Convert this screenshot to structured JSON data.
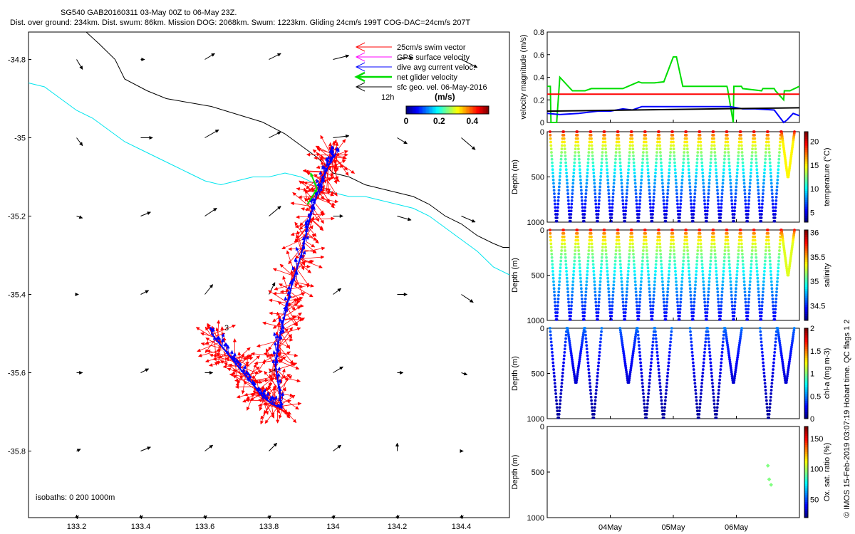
{
  "header": {
    "title_line1": "SG540 GAB20160311 03-May 00Z to 06-May 23Z.",
    "title_line2": "Dist. over ground: 234km. Dist. swum: 86km. Mission DOG: 2068km. Swum: 1223km. Gliding 24cm/s 199T COG-DAC=24cm/s 207T"
  },
  "footer": {
    "side_note": "© IMOS 15-Feb-2019 03:07:19 Hobart time. QC flags 1  2"
  },
  "colors": {
    "swim": "#ff0000",
    "gps": "#ff00ff",
    "dac": "#0000ff",
    "net": "#00dd00",
    "sfc": "#000000",
    "isobath_200": "#000000",
    "isobath_1000": "#00e5ee"
  },
  "chart_data": [
    {
      "id": "map",
      "type": "scatter",
      "xlabel": "",
      "ylabel": "",
      "xlim": [
        133.05,
        134.55
      ],
      "ylim": [
        -35.97,
        -34.73
      ],
      "xticks": [
        133.2,
        133.4,
        133.6,
        133.8,
        134,
        134.2,
        134.4
      ],
      "yticks": [
        -34.8,
        -35,
        -35.2,
        -35.4,
        -35.6,
        -35.8
      ],
      "legend": {
        "placement": "top-right",
        "entries": [
          "25cm/s swim vector",
          "GPS surface velocity",
          "dive avg current veloc.",
          "net glider velocity",
          "sfc geo. vel. 06-May-2016"
        ],
        "extra_label": "12h"
      },
      "colorbar": {
        "label": "(m/s)",
        "ticks": [
          "0",
          "0.2",
          "0.4"
        ],
        "range": [
          0,
          0.5
        ],
        "colormap": "jet"
      },
      "isobaths_note": "isobaths: 0   200  1000m",
      "track_label": "3",
      "isobath_200_lon": [
        133.23,
        133.27,
        133.32,
        133.35,
        133.42,
        133.48,
        133.55,
        133.62,
        133.7,
        133.78,
        133.85,
        133.9,
        133.95,
        134.0,
        134.05,
        134.1,
        134.15,
        134.2,
        134.25,
        134.3,
        134.35,
        134.4,
        134.45,
        134.5,
        134.53,
        134.55
      ],
      "isobath_200_lat": [
        -34.73,
        -34.76,
        -34.8,
        -34.85,
        -34.88,
        -34.9,
        -34.91,
        -34.92,
        -34.94,
        -34.96,
        -34.99,
        -35.02,
        -35.05,
        -35.09,
        -35.1,
        -35.12,
        -35.13,
        -35.14,
        -35.15,
        -35.17,
        -35.2,
        -35.22,
        -35.25,
        -35.27,
        -35.28,
        -35.28
      ],
      "isobath_1000_lon": [
        133.05,
        133.1,
        133.15,
        133.2,
        133.25,
        133.3,
        133.35,
        133.4,
        133.45,
        133.5,
        133.55,
        133.6,
        133.65,
        133.7,
        133.75,
        133.8,
        133.85,
        133.9,
        133.95,
        134.0,
        134.05,
        134.1,
        134.15,
        134.2,
        134.25,
        134.3,
        134.35,
        134.4,
        134.45,
        134.5,
        134.55
      ],
      "isobath_1000_lat": [
        -34.86,
        -34.87,
        -34.9,
        -34.93,
        -34.95,
        -34.98,
        -35.01,
        -35.03,
        -35.05,
        -35.07,
        -35.09,
        -35.11,
        -35.12,
        -35.11,
        -35.1,
        -35.1,
        -35.09,
        -35.1,
        -35.12,
        -35.14,
        -35.15,
        -35.15,
        -35.16,
        -35.17,
        -35.18,
        -35.2,
        -35.23,
        -35.26,
        -35.29,
        -35.33,
        -35.35
      ],
      "track_lon": [
        133.62,
        133.66,
        133.7,
        133.74,
        133.78,
        133.81,
        133.84,
        133.82,
        133.83,
        133.85,
        133.87,
        133.9,
        133.92,
        133.94,
        133.96,
        133.98,
        134.0,
        134.01
      ],
      "track_lat": [
        -35.5,
        -35.54,
        -35.58,
        -35.62,
        -35.66,
        -35.68,
        -35.69,
        -35.58,
        -35.52,
        -35.45,
        -35.38,
        -35.3,
        -35.23,
        -35.17,
        -35.12,
        -35.08,
        -35.05,
        -35.04
      ],
      "geo_vel_lon": [
        133.2,
        133.4,
        133.6,
        133.8,
        134.0,
        134.2,
        134.4
      ],
      "geo_vel_lat": [
        -34.8,
        -35.0,
        -35.2,
        -35.4,
        -35.6,
        -35.8,
        -35.97
      ],
      "geo_vel_u": [
        [
          0.03,
          0.02,
          0.05,
          0.06,
          0.08,
          0.08,
          0.08
        ],
        [
          0.03,
          0.06,
          0.07,
          0.06,
          0.08,
          0.05,
          0.07
        ],
        [
          0.03,
          0.05,
          0.06,
          0.06,
          0.05,
          0.07,
          0.07
        ],
        [
          0.01,
          0.04,
          0.04,
          0.03,
          0.04,
          0.05,
          0.06
        ],
        [
          0.03,
          0.04,
          0.04,
          0.04,
          0.05,
          0.03,
          0.03
        ],
        [
          0.02,
          0.05,
          0.04,
          0.04,
          0.04,
          0.0,
          0.01
        ],
        [
          0.01,
          0.01,
          0.01,
          0.01,
          0.01,
          0.01,
          0.01
        ]
      ],
      "geo_vel_v": [
        [
          -0.05,
          0.0,
          0.03,
          0.03,
          0.02,
          0.01,
          -0.04
        ],
        [
          -0.04,
          0.0,
          0.04,
          0.03,
          0.01,
          -0.03,
          -0.06
        ],
        [
          -0.01,
          0.02,
          0.04,
          0.05,
          0.0,
          -0.02,
          -0.03
        ],
        [
          0.0,
          0.02,
          0.05,
          0.06,
          0.03,
          0.0,
          -0.04
        ],
        [
          0.0,
          0.02,
          0.0,
          0.02,
          0.03,
          0.0,
          -0.01
        ],
        [
          0.01,
          0.02,
          0.03,
          0.04,
          0.03,
          0.04,
          0.0
        ],
        [
          0.01,
          0.01,
          0.01,
          0.01,
          0.01,
          0.01,
          0.01
        ]
      ],
      "net_velocity_lon": [
        133.92,
        133.95,
        133.93
      ],
      "net_velocity_lat": [
        -35.17,
        -35.13,
        -35.09
      ]
    },
    {
      "id": "velocity",
      "type": "line",
      "xlabel": "",
      "ylabel": "velocity magnitude (m/s)",
      "xlim": [
        3.0,
        7.0
      ],
      "ylim": [
        0,
        0.8
      ],
      "yticks": [
        "0",
        "0.2",
        "0.4",
        "0.6",
        "0.8"
      ],
      "series": [
        {
          "color": "#00dd00",
          "x": [
            3.0,
            3.05,
            3.06,
            3.15,
            3.2,
            3.4,
            3.6,
            3.7,
            4.1,
            4.2,
            4.45,
            4.5,
            4.7,
            4.85,
            5.0,
            5.05,
            5.15,
            5.3,
            5.5,
            5.7,
            5.85,
            5.86,
            5.95,
            5.96,
            6.08,
            6.1,
            6.4,
            6.42,
            6.6,
            6.62,
            6.75,
            6.76,
            6.85,
            7.0
          ],
          "y": [
            0.32,
            0.32,
            0.0,
            0.0,
            0.4,
            0.28,
            0.28,
            0.3,
            0.3,
            0.3,
            0.36,
            0.35,
            0.35,
            0.36,
            0.58,
            0.58,
            0.32,
            0.32,
            0.32,
            0.32,
            0.32,
            0.3,
            0.0,
            0.32,
            0.32,
            0.3,
            0.28,
            0.3,
            0.3,
            0.28,
            0.2,
            0.28,
            0.28,
            0.32
          ]
        },
        {
          "color": "#ff0000",
          "x": [
            3.0,
            7.0
          ],
          "y": [
            0.25,
            0.25
          ]
        },
        {
          "color": "#0000ff",
          "x": [
            3.0,
            3.2,
            3.5,
            3.8,
            4.0,
            4.2,
            4.35,
            4.5,
            4.7,
            5.0,
            5.3,
            5.6,
            5.9,
            6.1,
            6.3,
            6.6,
            6.75,
            6.8,
            6.9,
            7.0
          ],
          "y": [
            0.08,
            0.07,
            0.08,
            0.1,
            0.1,
            0.12,
            0.11,
            0.14,
            0.14,
            0.14,
            0.14,
            0.14,
            0.14,
            0.12,
            0.12,
            0.11,
            0.0,
            0.02,
            0.08,
            0.06
          ]
        },
        {
          "color": "#000000",
          "x": [
            3.0,
            7.0
          ],
          "y": [
            0.1,
            0.13
          ]
        }
      ]
    },
    {
      "id": "temperature",
      "type": "scatter",
      "xlabel": "",
      "ylabel": "Depth (m)",
      "xlim": [
        3.0,
        7.0
      ],
      "ylim": [
        1000,
        0
      ],
      "yticks": [
        "0",
        "500",
        "1000"
      ],
      "colorbar": {
        "label": "temperature (°C)",
        "ticks": [
          "5",
          "10",
          "15",
          "20"
        ],
        "range": [
          3,
          22
        ]
      },
      "profiles": {
        "count": 18,
        "surface_value": 20,
        "deep_value": 4,
        "final_shallow_value": 15
      }
    },
    {
      "id": "salinity",
      "type": "scatter",
      "xlabel": "",
      "ylabel": "Depth (m)",
      "xlim": [
        3.0,
        7.0
      ],
      "ylim": [
        1000,
        0
      ],
      "yticks": [
        "0",
        "500",
        "1000"
      ],
      "colorbar": {
        "label": "salinity",
        "ticks": [
          "34.5",
          "35",
          "35.5",
          "36"
        ],
        "range": [
          34.2,
          36.05
        ]
      },
      "profiles": {
        "count": 18,
        "surface_value": 35.8,
        "deep_value": 34.4,
        "final_shallow_value": 35.3
      }
    },
    {
      "id": "chla",
      "type": "scatter",
      "xlabel": "",
      "ylabel": "Depth (m)",
      "xlim": [
        3.0,
        7.0
      ],
      "ylim": [
        1000,
        0
      ],
      "yticks": [
        "0",
        "500",
        "1000"
      ],
      "colorbar": {
        "label": "chl-a (mg m-3)",
        "ticks": [
          "0",
          "0.5",
          "1",
          "1.5",
          "2"
        ],
        "range": [
          0,
          2
        ]
      },
      "profiles": {
        "count": 14,
        "surface_value": 0.5,
        "deep_value": 0.05
      }
    },
    {
      "id": "oxygen",
      "type": "scatter",
      "xlabel": "",
      "ylabel": "Depth (m)",
      "xlim": [
        3.0,
        7.0
      ],
      "ylim": [
        1000,
        0
      ],
      "yticks": [
        "0",
        "500",
        "1000"
      ],
      "xticks": [
        "04May",
        "05May",
        "06May"
      ],
      "xtick_values": [
        4.0,
        5.0,
        6.0
      ],
      "colorbar": {
        "label": "Ox. sat. ratio (%)",
        "ticks": [
          "50",
          "100",
          "150"
        ],
        "range": [
          20,
          170
        ]
      },
      "points_x": [
        6.5,
        6.52,
        6.55
      ],
      "points_y": [
        430,
        580,
        640
      ],
      "points_value": [
        95,
        95,
        95
      ]
    }
  ]
}
